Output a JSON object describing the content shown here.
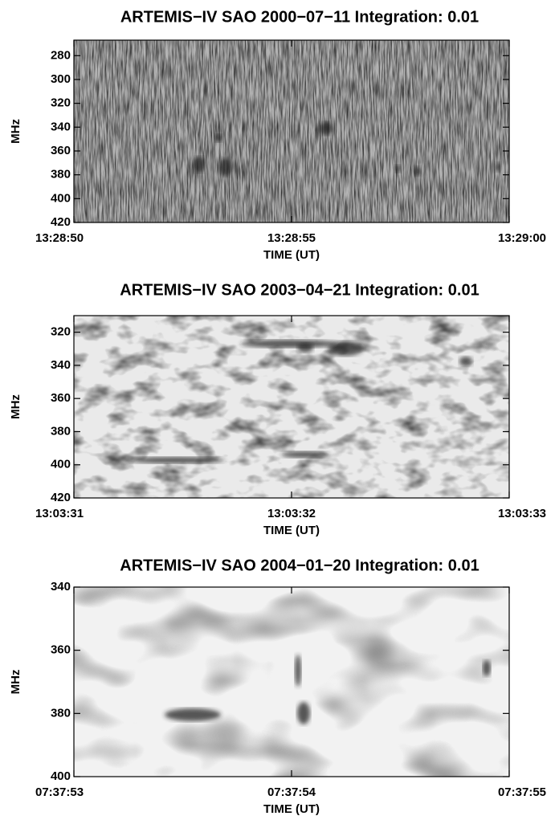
{
  "chart_data": [
    {
      "type": "spectrogram",
      "title": "ARTEMIS−IV  SAO 2000−07−11   Integration: 0.01",
      "xlabel": "TIME (UT)",
      "ylabel": "MHz",
      "xlim": [
        48530,
        48540
      ],
      "xticks": [
        {
          "value": 48530,
          "label": "13:28:50"
        },
        {
          "value": 48535,
          "label": "13:28:55"
        },
        {
          "value": 48540,
          "label": "13:29:00"
        }
      ],
      "ylim": [
        420,
        267
      ],
      "yticks": [
        280,
        300,
        320,
        340,
        360,
        380,
        400,
        420
      ]
    },
    {
      "type": "spectrogram",
      "title": "ARTEMIS−IV  SAO 2003−04−21   Integration: 0.01",
      "xlabel": "TIME (UT)",
      "ylabel": "MHz",
      "xlim": [
        47011,
        47013
      ],
      "xticks": [
        {
          "value": 47011,
          "label": "13:03:31"
        },
        {
          "value": 47012,
          "label": "13:03:32"
        },
        {
          "value": 47013,
          "label": "13:03:33"
        }
      ],
      "ylim": [
        420,
        310
      ],
      "yticks": [
        320,
        340,
        360,
        380,
        400,
        420
      ]
    },
    {
      "type": "spectrogram",
      "title": "ARTEMIS−IV  SAO 2004−01−20   Integration: 0.01",
      "xlabel": "TIME (UT)",
      "ylabel": "MHz",
      "xlim": [
        27473,
        27475
      ],
      "xticks": [
        {
          "value": 27473,
          "label": "07:37:53"
        },
        {
          "value": 27474,
          "label": "07:37:54"
        },
        {
          "value": 27475,
          "label": "07:37:55"
        }
      ],
      "ylim": [
        400,
        340
      ],
      "yticks": [
        340,
        360,
        380,
        400
      ]
    }
  ]
}
